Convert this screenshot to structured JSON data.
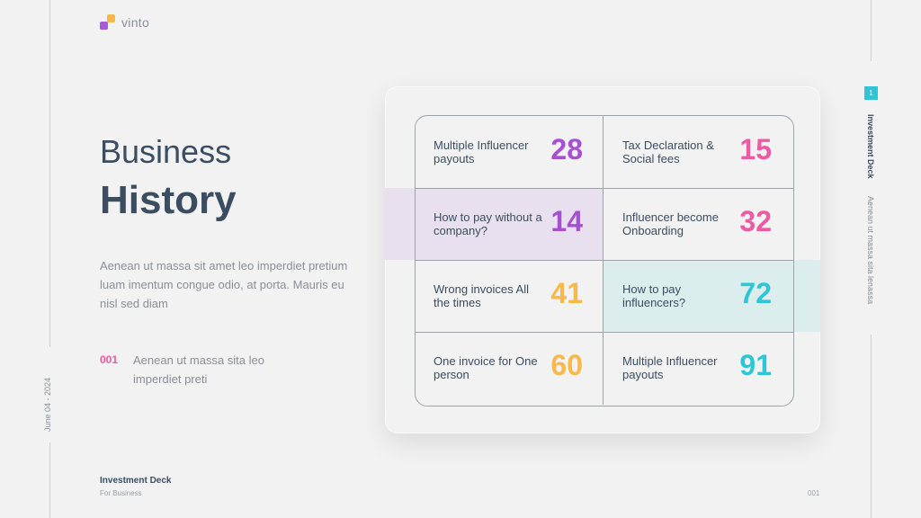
{
  "brand": {
    "name": "vinto"
  },
  "title": {
    "line1": "Business",
    "line2": "History"
  },
  "paragraph": "Aenean ut massa sit amet leo imperdiet pretium luam imentum congue odio, at porta. Mauris eu nisl sed diam",
  "note": {
    "number": "001",
    "text": "Aenean ut massa sita leo imperdiet preti"
  },
  "date": "June 04 - 2024",
  "footer": {
    "title": "Investment Deck",
    "subtitle": "For Business",
    "page": "001"
  },
  "sidebar": {
    "slide_number": "1",
    "title": "Investment Deck",
    "subtitle": "Aenean ut massa sita lenassa"
  },
  "colors": {
    "purple": "#a64fd1",
    "pink": "#eb5aa3",
    "orange": "#f8b84a",
    "cyan": "#2ec6d6"
  },
  "cells": [
    {
      "label": "Multiple Influencer payouts",
      "value": "28",
      "color": "#a64fd1"
    },
    {
      "label": "Tax Declaration & Social fees",
      "value": "15",
      "color": "#eb5aa3"
    },
    {
      "label": "How to pay without a company?",
      "value": "14",
      "color": "#a64fd1"
    },
    {
      "label": "Influencer become Onboarding",
      "value": "32",
      "color": "#eb5aa3"
    },
    {
      "label": "Wrong invoices All the times",
      "value": "41",
      "color": "#f8b84a"
    },
    {
      "label": "How to pay influencers?",
      "value": "72",
      "color": "#2ec6d6"
    },
    {
      "label": "One invoice for One person",
      "value": "60",
      "color": "#f8b84a"
    },
    {
      "label": "Multiple Influencer payouts",
      "value": "91",
      "color": "#2ec6d6"
    }
  ]
}
